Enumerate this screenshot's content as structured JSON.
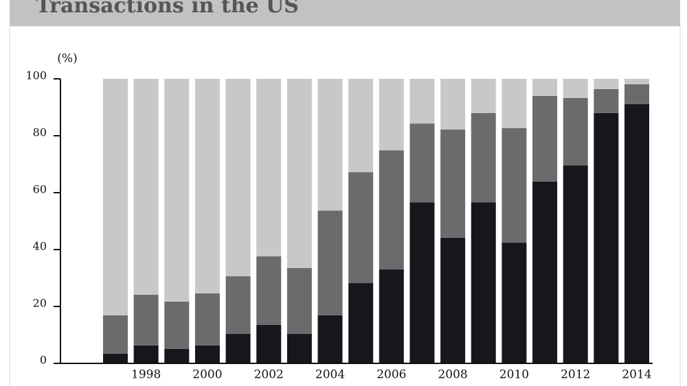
{
  "chart_data": {
    "type": "stacked-bar",
    "title": "Transactions in the US",
    "y_label": "(%)",
    "categories": [
      null,
      "1998",
      null,
      "2000",
      null,
      "2002",
      null,
      "2004",
      null,
      "2006",
      null,
      "2008",
      null,
      "2010",
      null,
      "2012",
      null,
      "2014"
    ],
    "series": [
      {
        "color": "#16171c",
        "values": [
          3.4,
          6.3,
          5.1,
          6.3,
          10.4,
          13.5,
          10.4,
          16.9,
          28.2,
          33,
          56.6,
          44.1,
          56.6,
          42.4,
          63.9,
          69.6,
          88,
          91.1
        ]
      },
      {
        "color": "#6b6b6e",
        "values": [
          13.5,
          17.8,
          16.6,
          18.3,
          20.2,
          24.1,
          23.1,
          36.8,
          39,
          41.9,
          27.7,
          38.1,
          31.4,
          40.3,
          30.1,
          23.7,
          8.4,
          7
        ]
      },
      {
        "color": "#c8c8ca",
        "values": [
          83.1,
          75.9,
          78.3,
          75.4,
          69.4,
          62.4,
          66.5,
          46.3,
          32.8,
          25.1,
          15.7,
          17.8,
          12,
          17.3,
          6,
          6.7,
          3.6,
          1.9
        ]
      }
    ],
    "ylim": [
      0,
      100
    ],
    "yticks": [
      0,
      20,
      40,
      60,
      80,
      100
    ]
  }
}
